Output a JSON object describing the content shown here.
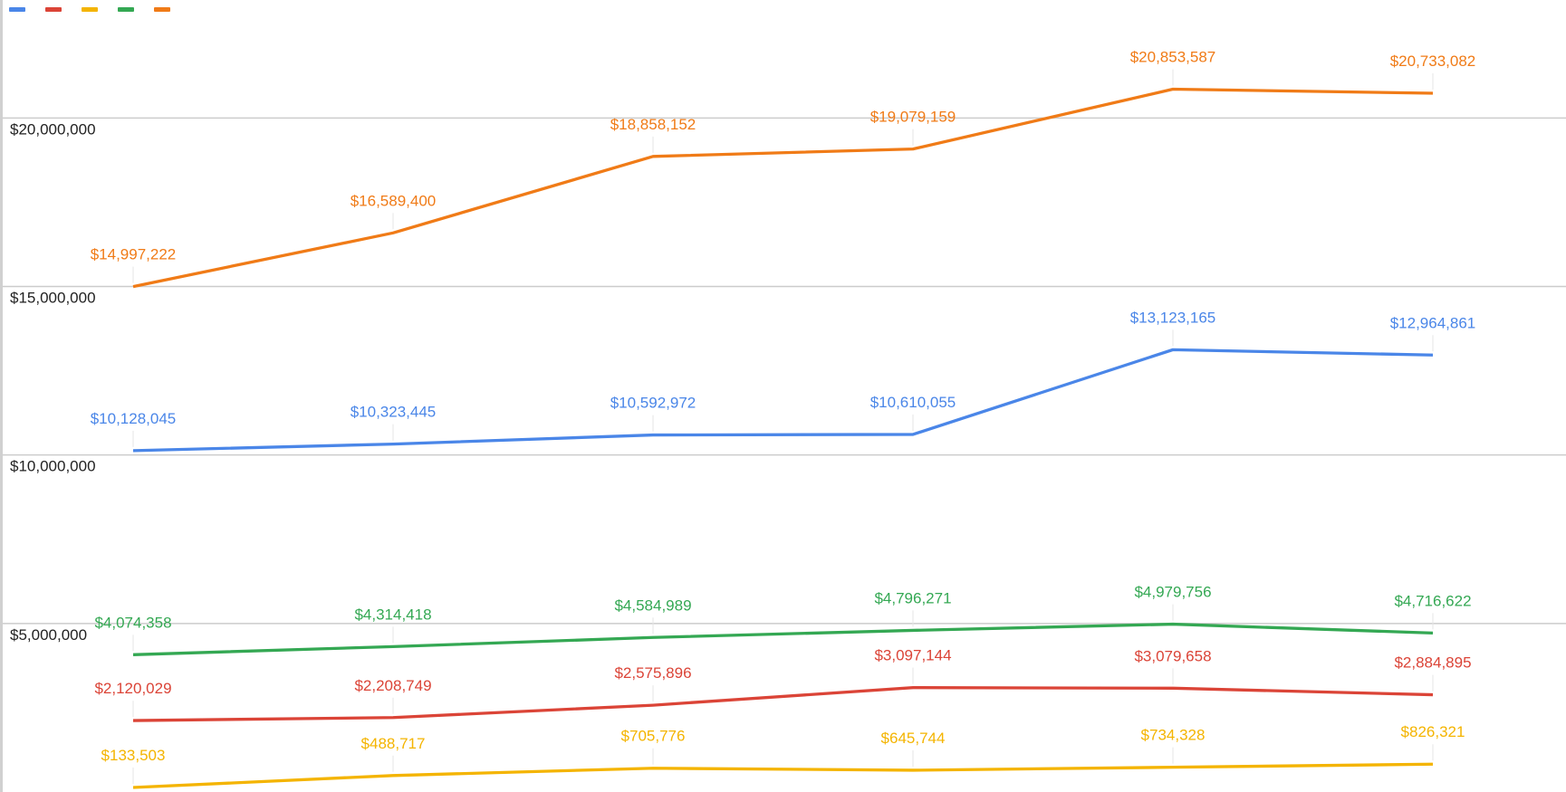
{
  "chart_data": {
    "type": "line",
    "categories": [
      null,
      null,
      null,
      null,
      null,
      null
    ],
    "series": [
      {
        "color": "#4a86e8",
        "values": [
          10128045,
          10323445,
          10592972,
          10610055,
          13123165,
          12964861
        ],
        "value_labels": [
          "$10,128,045",
          "$10,323,445",
          "$10,592,972",
          "$10,610,055",
          "$13,123,165",
          "$12,964,861"
        ]
      },
      {
        "color": "#db4437",
        "values": [
          2120029,
          2208749,
          2575896,
          3097144,
          3079658,
          2884895
        ],
        "value_labels": [
          "$2,120,029",
          "$2,208,749",
          "$2,575,896",
          "$3,097,144",
          "$3,079,658",
          "$2,884,895"
        ]
      },
      {
        "color": "#f4b400",
        "values": [
          133503,
          488717,
          705776,
          645744,
          734328,
          826321
        ],
        "value_labels": [
          "$133,503",
          "$488,717",
          "$705,776",
          "$645,744",
          "$734,328",
          "$826,321"
        ]
      },
      {
        "color": "#34a853",
        "values": [
          4074358,
          4314418,
          4584989,
          4796271,
          4979756,
          4716622
        ],
        "value_labels": [
          "$4,074,358",
          "$4,314,418",
          "$4,584,989",
          "$4,796,271",
          "$4,979,756",
          "$4,716,622"
        ]
      },
      {
        "color": "#f07b17",
        "values": [
          14997222,
          16589400,
          18858152,
          19079159,
          20853587,
          20733082
        ],
        "value_labels": [
          "$14,997,222",
          "$16,589,400",
          "$18,858,152",
          "$19,079,159",
          "$20,853,587",
          "$20,733,082"
        ]
      }
    ],
    "ylim": [
      0,
      23500000
    ],
    "yticks": [
      {
        "value": 5000000,
        "label": "$5,000,000"
      },
      {
        "value": 10000000,
        "label": "$10,000,000"
      },
      {
        "value": 15000000,
        "label": "$15,000,000"
      },
      {
        "value": 20000000,
        "label": "$20,000,000"
      }
    ],
    "grid": true,
    "legend": "top-left"
  }
}
